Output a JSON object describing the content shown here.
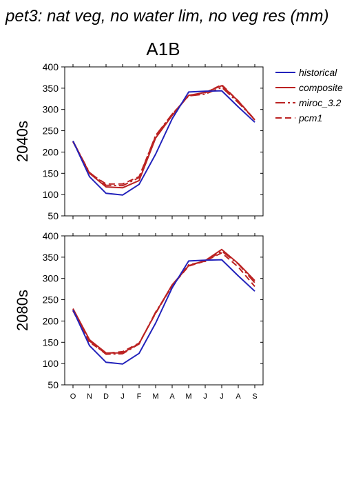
{
  "title": "pet3: nat veg, no water lim, no veg res (mm)",
  "scenario": "A1B",
  "legend": [
    "historical",
    "composite",
    "miroc_3.2",
    "pcm1"
  ],
  "colors": {
    "historical": "#2222bb",
    "projections": "#bb2222"
  },
  "chart_data": [
    {
      "type": "line",
      "row_label": "2040s",
      "categories": [
        "O",
        "N",
        "D",
        "J",
        "F",
        "M",
        "A",
        "M",
        "J",
        "J",
        "A",
        "S"
      ],
      "ylim": [
        50,
        400
      ],
      "yticks": [
        "50",
        "100",
        "150",
        "200",
        "250",
        "300",
        "350",
        "400"
      ],
      "series": [
        {
          "name": "historical",
          "values": [
            226,
            142,
            103,
            99,
            124,
            195,
            278,
            341,
            343,
            344,
            306,
            270
          ]
        },
        {
          "name": "composite",
          "values": [
            226,
            150,
            118,
            116,
            133,
            233,
            286,
            333,
            340,
            356,
            320,
            275
          ]
        },
        {
          "name": "miroc_3.2",
          "values": [
            225,
            152,
            122,
            121,
            140,
            239,
            289,
            332,
            336,
            352,
            316,
            276
          ]
        },
        {
          "name": "pcm1",
          "values": [
            224,
            150,
            125,
            125,
            142,
            237,
            288,
            333,
            339,
            358,
            320,
            276
          ]
        }
      ]
    },
    {
      "type": "line",
      "row_label": "2080s",
      "categories": [
        "O",
        "N",
        "D",
        "J",
        "F",
        "M",
        "A",
        "M",
        "J",
        "J",
        "A",
        "S"
      ],
      "ylim": [
        50,
        400
      ],
      "yticks": [
        "50",
        "100",
        "150",
        "200",
        "250",
        "300",
        "350",
        "400"
      ],
      "series": [
        {
          "name": "historical",
          "values": [
            226,
            142,
            103,
            99,
            124,
            195,
            278,
            341,
            343,
            344,
            306,
            270
          ]
        },
        {
          "name": "composite",
          "values": [
            229,
            156,
            125,
            125,
            147,
            219,
            285,
            330,
            342,
            368,
            335,
            295
          ]
        },
        {
          "name": "miroc_3.2",
          "values": [
            227,
            153,
            122,
            123,
            146,
            221,
            282,
            332,
            340,
            364,
            334,
            290
          ]
        },
        {
          "name": "pcm1",
          "values": [
            224,
            150,
            124,
            128,
            148,
            218,
            283,
            329,
            341,
            360,
            327,
            281
          ]
        }
      ]
    }
  ]
}
